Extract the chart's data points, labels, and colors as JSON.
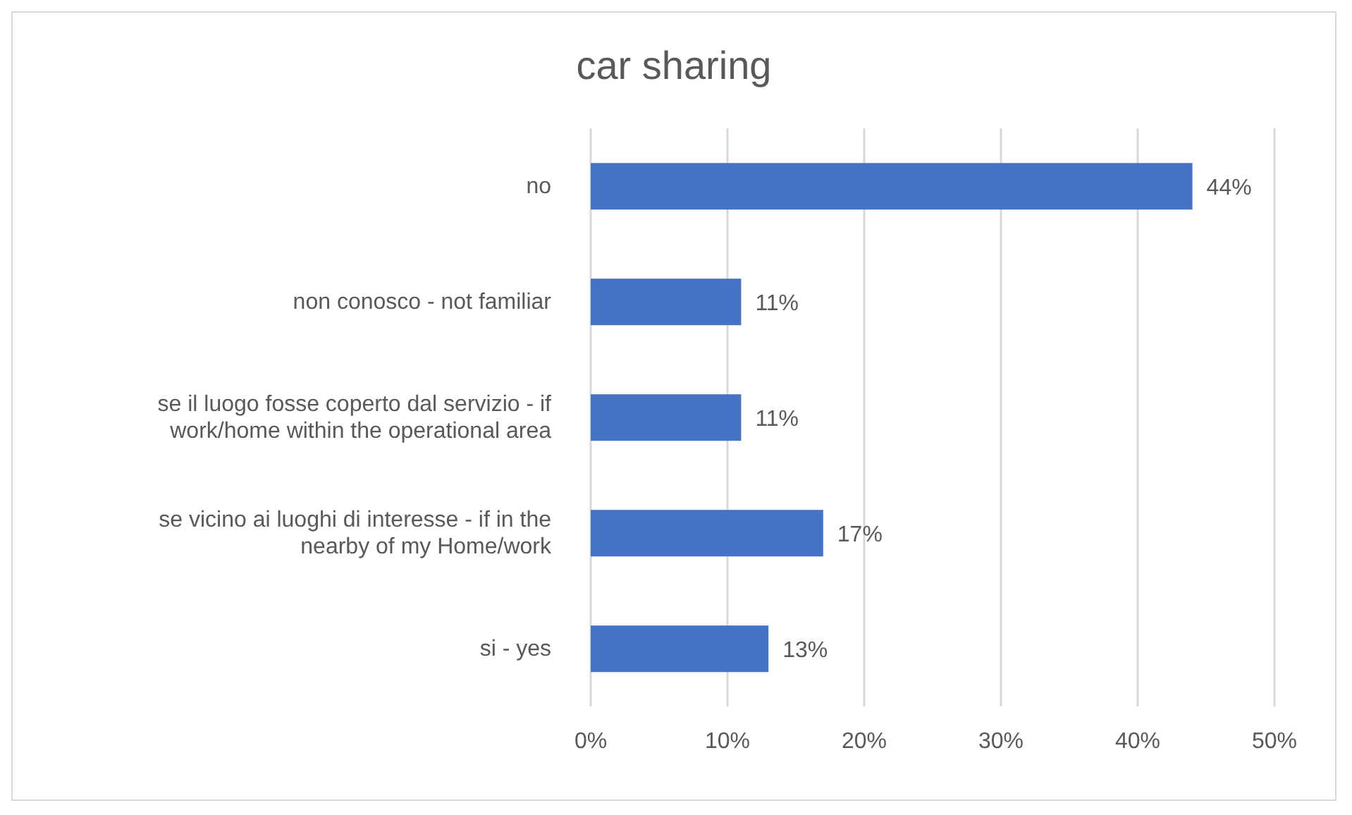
{
  "chart_data": {
    "type": "bar",
    "orientation": "horizontal",
    "title": "car sharing",
    "categories": [
      "no",
      "non conosco - not familiar",
      "se il luogo fosse coperto dal servizio - if work/home within the operational area",
      "se vicino ai luoghi di interesse - if in the nearby of my Home/work",
      "si - yes"
    ],
    "values": [
      44,
      11,
      11,
      17,
      13
    ],
    "value_labels": [
      "44%",
      "11%",
      "11%",
      "17%",
      "13%"
    ],
    "color": "#4472c4",
    "xlim": [
      0,
      50
    ],
    "xticks": [
      {
        "value": 0,
        "label": "0%"
      },
      {
        "value": 10,
        "label": "10%"
      },
      {
        "value": 20,
        "label": "20%"
      },
      {
        "value": 30,
        "label": "30%"
      },
      {
        "value": 40,
        "label": "40%"
      },
      {
        "value": 50,
        "label": "50%"
      }
    ],
    "grid": "x"
  }
}
